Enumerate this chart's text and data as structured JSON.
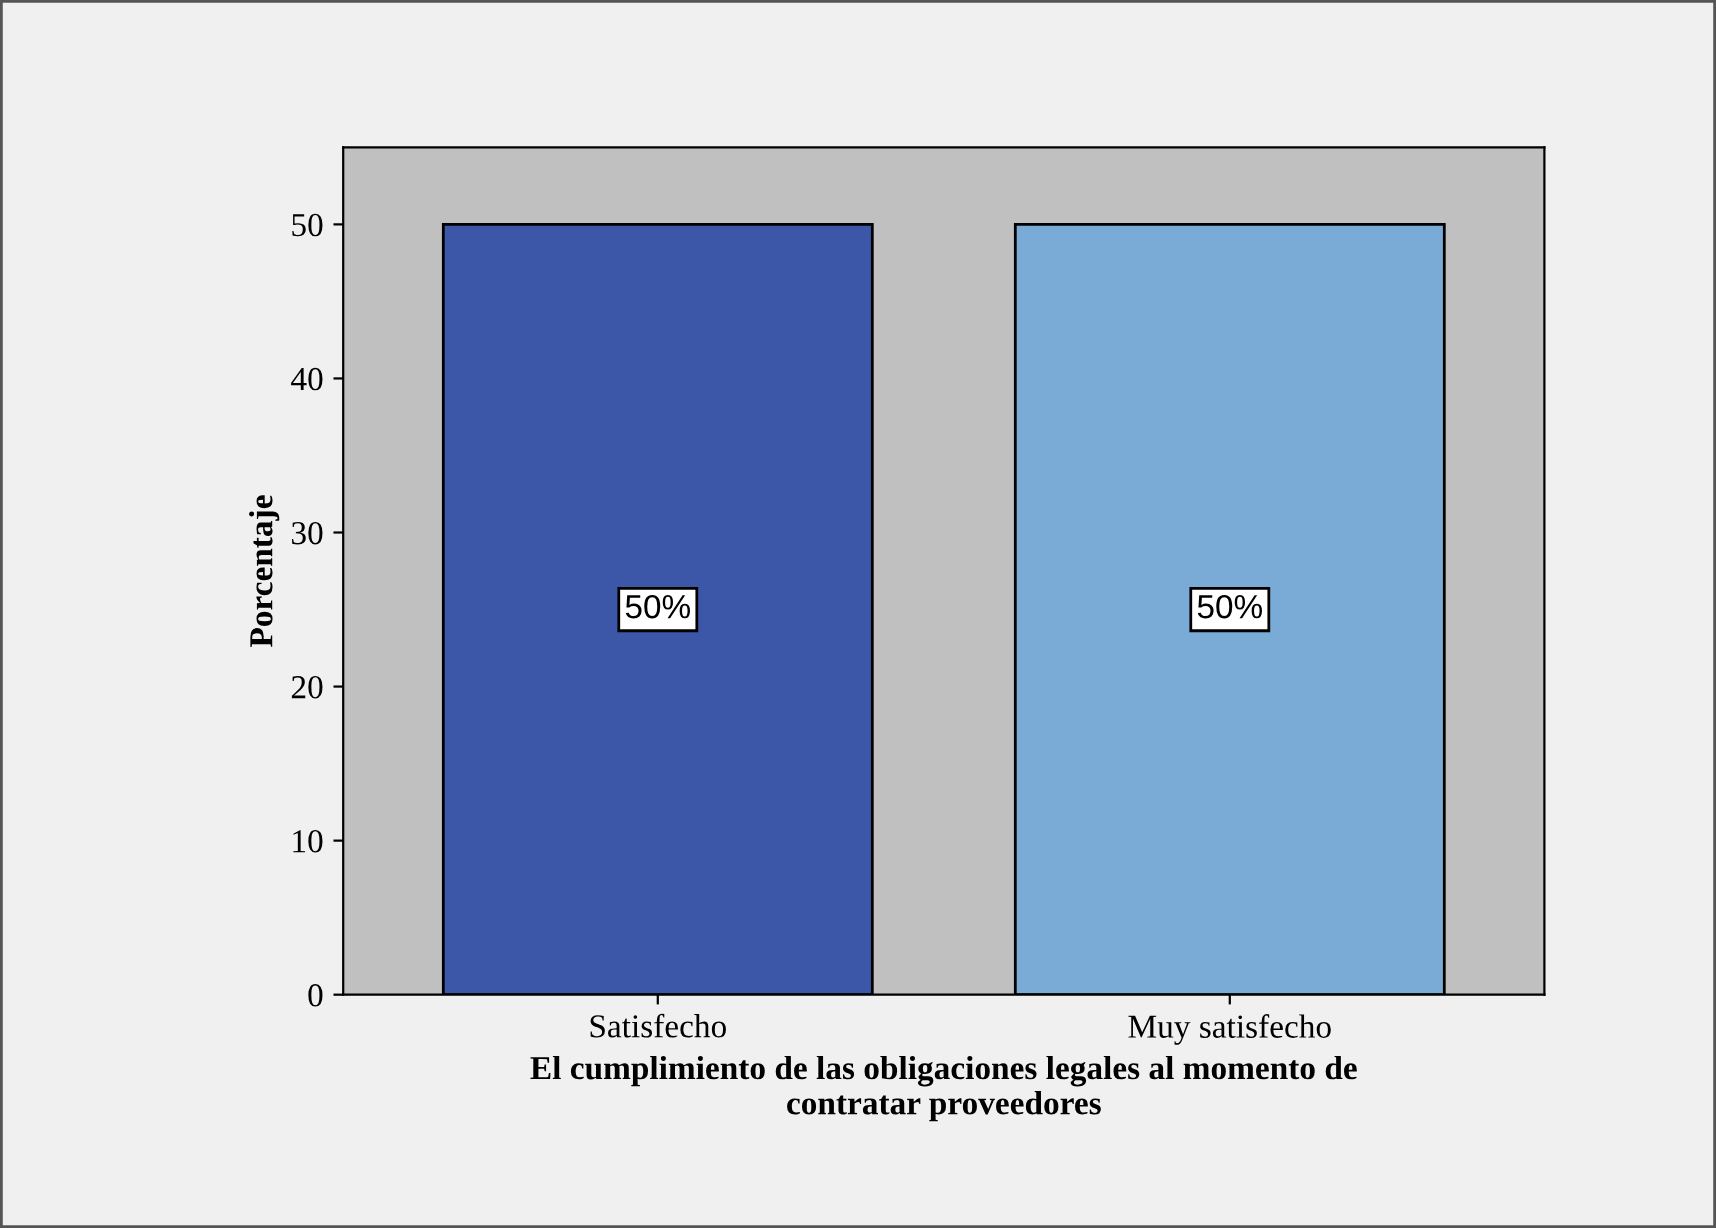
{
  "chart_data": {
    "type": "bar",
    "xlabel": "El cumplimiento de las obligaciones legales al momento de\ncontratar proveedores",
    "ylabel": "Porcentaje",
    "categories": [
      "Satisfecho",
      "Muy satisfecho"
    ],
    "values": [
      50,
      50
    ],
    "colors": [
      "#3d57a8",
      "#7aaad6"
    ],
    "value_labels": [
      "50%",
      "50%"
    ],
    "ylim": [
      0,
      55
    ],
    "yticks": [
      0,
      10,
      20,
      30,
      40,
      50
    ],
    "grid": false,
    "legend": false
  }
}
